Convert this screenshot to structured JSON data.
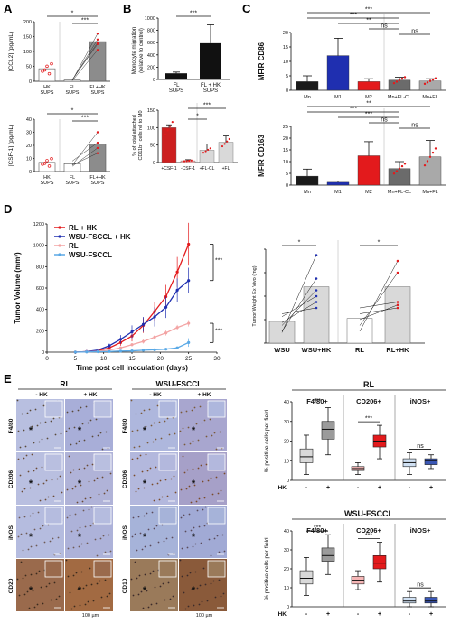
{
  "figure": {
    "panels": [
      "A",
      "B",
      "C",
      "D",
      "E"
    ]
  },
  "panel_a": {
    "top": {
      "ylabel": "[CCL2] (pg/mL)",
      "ymax": 200,
      "ticks": [
        "0",
        "50",
        "100",
        "150",
        "200"
      ],
      "categories": [
        "HK SUPS",
        "FL SUPS",
        "FL+HK SUPS"
      ],
      "bars": [
        42,
        4,
        133
      ],
      "pairs": [
        [
          5,
          130
        ],
        [
          3,
          160
        ],
        [
          2,
          105
        ],
        [
          4,
          140
        ],
        [
          6,
          125
        ]
      ],
      "sig": [
        "*",
        "***"
      ]
    },
    "bottom": {
      "ylabel": "[CSF-1] (pg/mL)",
      "ymax": 40,
      "ticks": [
        "0",
        "10",
        "20",
        "30",
        "40"
      ],
      "categories": [
        "HK SUPS",
        "FL SUPS",
        "FL+HK SUPS"
      ],
      "bars": [
        7,
        6,
        21
      ],
      "pairs": [
        [
          5,
          30
        ],
        [
          4,
          18
        ],
        [
          8,
          22
        ],
        [
          5,
          14
        ]
      ],
      "sig": [
        "*",
        "***"
      ]
    }
  },
  "panel_b": {
    "top": {
      "ylabel": "Monocyte migration (relative to control)",
      "ymax": 1000,
      "ticks": [
        "0",
        "200",
        "400",
        "600",
        "800",
        "1000"
      ],
      "categories": [
        "FL SUPS",
        "FL + HK SUPS"
      ],
      "values": [
        100,
        590
      ],
      "errors": [
        20,
        300
      ],
      "sig": "***"
    },
    "bottom": {
      "ylabel": "% of total attached CD11b+ cells rel to M0",
      "ymax": 150,
      "ticks": [
        "0",
        "50",
        "100",
        "150"
      ],
      "categories": [
        "+CSF-1",
        "-CSF-1",
        "+FL-CL",
        "+FL"
      ],
      "values": [
        100,
        5,
        35,
        58
      ],
      "errors": [
        8,
        3,
        18,
        18
      ],
      "colors": [
        "#cc1f1f",
        "#f5b5b5",
        "#d9d9d9",
        "#d9d9d9"
      ],
      "sig": [
        "*",
        "***"
      ]
    }
  },
  "panel_c": {
    "top": {
      "ylabel": "MFIR CD86",
      "ymax": 20,
      "ticks": [
        "0",
        "5",
        "10",
        "15",
        "20"
      ],
      "categories": [
        "Mn",
        "M1",
        "M2",
        "Mn+FL-CL",
        "Mn+FL"
      ],
      "values": [
        3,
        12,
        3,
        3.5,
        3.2
      ],
      "errors": [
        2,
        6,
        1,
        1,
        0.8
      ],
      "colors": [
        "#1a1a1a",
        "#1f2fb0",
        "#e31a1c",
        "#6b6b6b",
        "#a9a9a9"
      ],
      "sig": [
        "***",
        "***",
        "**",
        "ns",
        "ns"
      ]
    },
    "bottom": {
      "ylabel": "MFIR CD163",
      "ymax": 25,
      "ticks": [
        "0",
        "5",
        "10",
        "15",
        "20",
        "25"
      ],
      "categories": [
        "Mn",
        "M1",
        "M2",
        "Mn+FL-CL",
        "Mn+FL"
      ],
      "values": [
        3.8,
        1.2,
        12.5,
        7,
        12
      ],
      "errors": [
        3,
        0.5,
        6,
        3,
        7
      ],
      "colors": [
        "#1a1a1a",
        "#1f2fb0",
        "#e31a1c",
        "#6b6b6b",
        "#a9a9a9"
      ],
      "sig": [
        "***",
        "**",
        "***",
        "ns",
        "ns"
      ]
    }
  },
  "chart_data": {
    "type": "line",
    "ylabel": "Tumor Volume (mm³)",
    "xlabel": "Time post cell inoculation (days)",
    "ylim": [
      0,
      1200
    ],
    "xlim": [
      0,
      30
    ],
    "xticks": [
      "0",
      "5",
      "10",
      "15",
      "20",
      "25",
      "30"
    ],
    "yticks": [
      "0",
      "200",
      "400",
      "600",
      "800",
      "1000",
      "1200"
    ],
    "x": [
      5,
      7,
      9,
      11,
      13,
      15,
      17,
      19,
      21,
      23,
      25
    ],
    "series": [
      {
        "name": "RL + HK",
        "color": "#e31a1c",
        "values": [
          0,
          5,
          15,
          40,
          90,
          150,
          250,
          380,
          520,
          750,
          1010
        ],
        "errors": [
          0,
          3,
          8,
          15,
          30,
          50,
          70,
          90,
          110,
          140,
          200
        ]
      },
      {
        "name": "WSU-FSCCL + HK",
        "color": "#1f2fb0",
        "values": [
          0,
          5,
          20,
          60,
          120,
          190,
          260,
          330,
          420,
          580,
          670
        ],
        "errors": [
          0,
          3,
          10,
          20,
          40,
          60,
          70,
          90,
          100,
          110,
          120
        ]
      },
      {
        "name": "RL",
        "color": "#f3a3a3",
        "values": [
          0,
          3,
          8,
          20,
          40,
          70,
          100,
          140,
          180,
          230,
          270
        ],
        "errors": [
          0,
          2,
          4,
          8,
          12,
          15,
          20,
          20,
          25,
          25,
          30
        ]
      },
      {
        "name": "WSU-FSCCL",
        "color": "#5aa9e6",
        "values": [
          0,
          2,
          4,
          6,
          10,
          12,
          18,
          22,
          28,
          40,
          90
        ],
        "errors": [
          0,
          1,
          2,
          2,
          3,
          4,
          5,
          6,
          8,
          10,
          40
        ]
      }
    ],
    "sig": [
      "***",
      "***"
    ],
    "exvivo": {
      "ylabel": "Tumor Weight Ex Vivo (mg)",
      "categories": [
        "WSU",
        "WSU+HK",
        "RL",
        "RL+HK"
      ],
      "bars": [
        370,
        960,
        420,
        960
      ],
      "wsu_pairs": [
        [
          180,
          1500
        ],
        [
          200,
          1100
        ],
        [
          300,
          900
        ],
        [
          450,
          800
        ],
        [
          500,
          600
        ],
        [
          350,
          700
        ]
      ],
      "rl_pairs": [
        [
          200,
          1400
        ],
        [
          300,
          1200
        ],
        [
          400,
          650
        ],
        [
          500,
          600
        ],
        [
          600,
          700
        ]
      ],
      "sig": [
        "*",
        "*"
      ]
    }
  },
  "panel_e": {
    "rl_title": "RL",
    "wsu_title": "WSU-FSCCL",
    "minus_hk": "- HK",
    "plus_hk": "+ HK",
    "rl_rows": [
      "F4/80",
      "CD206",
      "iNOS",
      "CD20"
    ],
    "wsu_rows": [
      "F4/80",
      "CD206",
      "iNOS",
      "CD10"
    ],
    "scalebar": "100 µm",
    "box_rl": {
      "title": "RL",
      "ylabel": "% positive cells per field",
      "groups": [
        "F4/80+",
        "CD206+",
        "iNOS+"
      ],
      "hk": [
        "-",
        "+"
      ],
      "hk_label": "HK",
      "ticks": [
        "0",
        "10",
        "20",
        "30",
        "40"
      ],
      "ymax": 40,
      "boxes": [
        {
          "q1": 9,
          "med": 12,
          "q3": 16,
          "min": 3,
          "max": 23,
          "color": "#d9d9d9"
        },
        {
          "q1": 21,
          "med": 26,
          "q3": 30,
          "min": 13,
          "max": 37,
          "color": "#9b9b9b"
        },
        {
          "q1": 5,
          "med": 6,
          "q3": 7,
          "min": 3,
          "max": 9,
          "color": "#f6b6b6"
        },
        {
          "q1": 17,
          "med": 20,
          "q3": 23,
          "min": 11,
          "max": 28,
          "color": "#e31a1c"
        },
        {
          "q1": 7,
          "med": 9,
          "q3": 11,
          "min": 3,
          "max": 14,
          "color": "#cfe0f3"
        },
        {
          "q1": 8,
          "med": 10,
          "q3": 11,
          "min": 6,
          "max": 13,
          "color": "#3a57b5"
        }
      ],
      "sig": [
        "***",
        "***",
        "ns"
      ]
    },
    "box_wsu": {
      "title": "WSU-FSCCL",
      "ylabel": "% positive cells per field",
      "groups": [
        "F4/80+",
        "CD206+",
        "iNOS+"
      ],
      "hk": [
        "-",
        "+"
      ],
      "hk_label": "HK",
      "ticks": [
        "0",
        "10",
        "20",
        "30",
        "40"
      ],
      "ymax": 40,
      "boxes": [
        {
          "q1": 12,
          "med": 15,
          "q3": 19,
          "min": 6,
          "max": 26,
          "color": "#d9d9d9"
        },
        {
          "q1": 24,
          "med": 27,
          "q3": 31,
          "min": 17,
          "max": 38,
          "color": "#9b9b9b"
        },
        {
          "q1": 12,
          "med": 14,
          "q3": 16,
          "min": 9,
          "max": 19,
          "color": "#f6b6b6"
        },
        {
          "q1": 20,
          "med": 23,
          "q3": 27,
          "min": 13,
          "max": 34,
          "color": "#e31a1c"
        },
        {
          "q1": 2,
          "med": 3,
          "q3": 5,
          "min": 0,
          "max": 8,
          "color": "#cfe0f3"
        },
        {
          "q1": 2,
          "med": 3,
          "q3": 5,
          "min": 0,
          "max": 8,
          "color": "#3a57b5"
        }
      ],
      "sig": [
        "***",
        "***",
        "ns"
      ]
    }
  }
}
